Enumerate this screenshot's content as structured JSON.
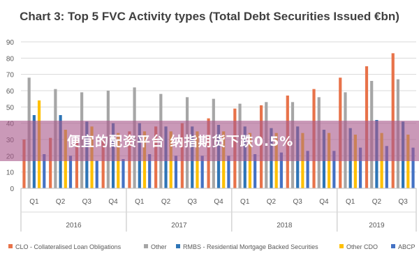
{
  "overlay_banner": {
    "text": "便宜的配资平台 纳指期货下跌0.5%"
  },
  "colors": {
    "CLO": "#e8734a",
    "Other": "#a6a6a6",
    "RMBS": "#2e75b6",
    "Other CDO": "#ffc000",
    "ABCP": "#4472c4",
    "grid": "#d9d9d9",
    "axis_text": "#595959",
    "banner": "#aa5a8c"
  },
  "chart_data": {
    "type": "bar",
    "title": "Chart 3: Top 5 FVC Activity types (Total Debt Securities Issued €bn)",
    "ylim": [
      0,
      90
    ],
    "yticks": [
      0,
      10,
      20,
      30,
      40,
      50,
      60,
      70,
      80,
      90
    ],
    "grid": true,
    "legend_position": "bottom",
    "categories": [
      "Q1",
      "Q2",
      "Q3",
      "Q4",
      "Q1",
      "Q2",
      "Q3",
      "Q4",
      "Q1",
      "Q2",
      "Q3",
      "Q4",
      "Q1",
      "Q2",
      "Q3"
    ],
    "year_groups": [
      {
        "label": "2016",
        "count": 4
      },
      {
        "label": "2017",
        "count": 4
      },
      {
        "label": "2018",
        "count": 4
      },
      {
        "label": "2019",
        "count": 3
      }
    ],
    "series": [
      {
        "name": "CLO - Collateralised Loan Obligations",
        "color_key": "CLO",
        "values": [
          30,
          31,
          30,
          30,
          35,
          38,
          40,
          43,
          49,
          51,
          57,
          61,
          68,
          75,
          83
        ]
      },
      {
        "name": "Other",
        "color_key": "Other",
        "values": [
          68,
          61,
          59,
          60,
          62,
          58,
          56,
          55,
          52,
          53,
          53,
          56,
          59,
          66,
          67
        ]
      },
      {
        "name": "RMBS - Residential Mortgage Backed Securities",
        "color_key": "RMBS",
        "values": [
          45,
          45,
          41,
          40,
          40,
          38,
          38,
          39,
          38,
          37,
          38,
          36,
          37,
          42,
          41
        ]
      },
      {
        "name": "Other CDO",
        "color_key": "Other CDO",
        "values": [
          54,
          36,
          38,
          34,
          35,
          35,
          35,
          35,
          34,
          34,
          34,
          34,
          33,
          34,
          33
        ]
      },
      {
        "name": "ABCP",
        "color_key": "ABCP",
        "values": [
          21,
          20,
          17,
          18,
          21,
          20,
          20,
          20,
          21,
          22,
          23,
          23,
          25,
          26,
          25
        ]
      }
    ]
  }
}
